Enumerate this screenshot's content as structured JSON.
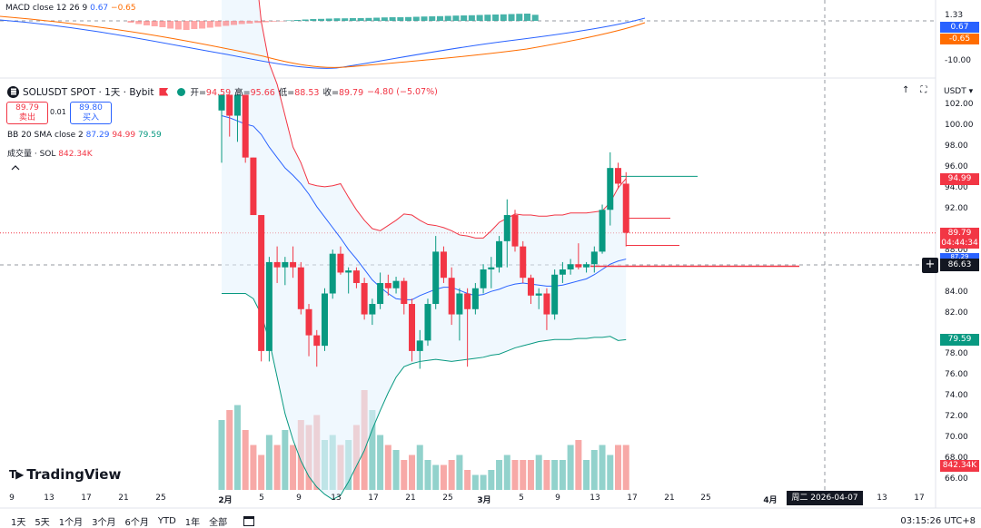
{
  "macd": {
    "label": "MACD close 12 26 9",
    "macd_val": "0.67",
    "signal_val": "−0.65",
    "scale": [
      "1.33",
      "0.67",
      "-0.65",
      "-10.00"
    ]
  },
  "symbol": {
    "title": "SOLUSDT SPOT · 1天 · Bybit",
    "open_label": "开=",
    "open": "94.59",
    "high_label": "高=",
    "high": "95.66",
    "low_label": "低=",
    "low": "88.53",
    "close_label": "收=",
    "close": "89.79",
    "change": "−4.80 (−5.07%)"
  },
  "trade": {
    "sell_price": "89.79",
    "sell_label": "卖出",
    "spread": "0.01",
    "buy_price": "89.80",
    "buy_label": "买入"
  },
  "bb": {
    "label": "BB 20 SMA close 2",
    "basis": "87.29",
    "upper": "94.99",
    "lower": "79.59"
  },
  "volume": {
    "label": "成交量 · SOL",
    "value": "842.34K"
  },
  "currency": "USDT",
  "price_axis": [
    "102.00",
    "100.00",
    "98.00",
    "96.00",
    "94.00",
    "92.00",
    "88.00",
    "84.00",
    "82.00",
    "78.00",
    "76.00",
    "74.00",
    "72.00",
    "70.00",
    "68.00",
    "66.00"
  ],
  "price_badges": {
    "upper": "94.99",
    "last": "89.79",
    "countdown": "04:44:34",
    "basis": "87.29",
    "crosshair": "86.63",
    "lower": "79.59",
    "volume": "842.34K"
  },
  "x_axis": [
    "9",
    "13",
    "17",
    "21",
    "25",
    "2月",
    "5",
    "9",
    "13",
    "17",
    "21",
    "25",
    "3月",
    "5",
    "9",
    "13",
    "17",
    "21",
    "25",
    "4月",
    "13",
    "17"
  ],
  "crosshair_date": "周二 2026-04-07",
  "branding": "TradingView",
  "timeframes": [
    "1天",
    "5天",
    "1个月",
    "3个月",
    "6个月",
    "YTD",
    "1年",
    "全部"
  ],
  "clock": "03:15:26 UTC+8",
  "colors": {
    "up": "#089981",
    "down": "#f23645",
    "macd_line": "#2962ff",
    "signal_line": "#ff6d00",
    "bb_fill": "#e3f2fd"
  },
  "chart_data": {
    "type": "candlestick",
    "y_range": [
      65,
      103
    ],
    "candles": [
      {
        "o": 101.5,
        "h": 103.0,
        "l": 96.5,
        "c": 103.0
      },
      {
        "o": 103.0,
        "h": 103.0,
        "l": 99.0,
        "c": 101.0
      },
      {
        "o": 101.0,
        "h": 103.0,
        "l": 98.5,
        "c": 103.0
      },
      {
        "o": 103.0,
        "h": 103.0,
        "l": 96.5,
        "c": 97.0
      },
      {
        "o": 97.0,
        "h": 97.0,
        "l": 91.5,
        "c": 91.5
      },
      {
        "o": 91.5,
        "h": 91.5,
        "l": 77.5,
        "c": 78.5
      },
      {
        "o": 78.5,
        "h": 87.5,
        "l": 77.5,
        "c": 87.0
      },
      {
        "o": 87.0,
        "h": 88.5,
        "l": 85.0,
        "c": 86.5
      },
      {
        "o": 86.5,
        "h": 87.5,
        "l": 84.8,
        "c": 87.0
      },
      {
        "o": 87.0,
        "h": 88.5,
        "l": 85.5,
        "c": 86.5
      },
      {
        "o": 86.5,
        "h": 87.0,
        "l": 82.0,
        "c": 82.5
      },
      {
        "o": 82.5,
        "h": 83.0,
        "l": 78.0,
        "c": 80.0
      },
      {
        "o": 80.0,
        "h": 80.5,
        "l": 77.0,
        "c": 79.0
      },
      {
        "o": 79.0,
        "h": 84.5,
        "l": 78.5,
        "c": 84.0
      },
      {
        "o": 84.0,
        "h": 88.2,
        "l": 83.5,
        "c": 87.8
      },
      {
        "o": 87.8,
        "h": 88.5,
        "l": 85.8,
        "c": 86.0
      },
      {
        "o": 86.0,
        "h": 86.5,
        "l": 84.0,
        "c": 86.2
      },
      {
        "o": 86.2,
        "h": 86.5,
        "l": 84.5,
        "c": 85.0
      },
      {
        "o": 85.0,
        "h": 85.5,
        "l": 81.5,
        "c": 82.0
      },
      {
        "o": 82.0,
        "h": 83.5,
        "l": 81.0,
        "c": 83.0
      },
      {
        "o": 83.0,
        "h": 86.0,
        "l": 82.5,
        "c": 85.0
      },
      {
        "o": 85.0,
        "h": 85.8,
        "l": 83.8,
        "c": 84.5
      },
      {
        "o": 84.5,
        "h": 85.6,
        "l": 84.0,
        "c": 85.2
      },
      {
        "o": 85.2,
        "h": 85.5,
        "l": 82.0,
        "c": 83.0
      },
      {
        "o": 83.0,
        "h": 83.5,
        "l": 77.5,
        "c": 78.5
      },
      {
        "o": 78.5,
        "h": 80.5,
        "l": 76.8,
        "c": 79.5
      },
      {
        "o": 79.5,
        "h": 83.5,
        "l": 79.0,
        "c": 83.0
      },
      {
        "o": 83.0,
        "h": 89.5,
        "l": 82.5,
        "c": 88.0
      },
      {
        "o": 88.0,
        "h": 88.5,
        "l": 85.0,
        "c": 85.5
      },
      {
        "o": 85.5,
        "h": 86.5,
        "l": 81.0,
        "c": 82.0
      },
      {
        "o": 82.0,
        "h": 84.5,
        "l": 79.5,
        "c": 84.0
      },
      {
        "o": 84.0,
        "h": 84.5,
        "l": 77.0,
        "c": 82.5
      },
      {
        "o": 82.5,
        "h": 85.0,
        "l": 82.0,
        "c": 84.5
      },
      {
        "o": 84.5,
        "h": 86.8,
        "l": 84.0,
        "c": 86.3
      },
      {
        "o": 86.3,
        "h": 87.5,
        "l": 84.5,
        "c": 86.5
      },
      {
        "o": 86.5,
        "h": 89.5,
        "l": 86.0,
        "c": 89.0
      },
      {
        "o": 89.0,
        "h": 93.0,
        "l": 86.5,
        "c": 91.5
      },
      {
        "o": 91.5,
        "h": 92.0,
        "l": 88.0,
        "c": 88.5
      },
      {
        "o": 88.5,
        "h": 89.0,
        "l": 85.0,
        "c": 85.5
      },
      {
        "o": 85.5,
        "h": 85.8,
        "l": 83.0,
        "c": 83.8
      },
      {
        "o": 83.8,
        "h": 84.5,
        "l": 82.5,
        "c": 84.0
      },
      {
        "o": 84.0,
        "h": 84.5,
        "l": 80.5,
        "c": 82.0
      },
      {
        "o": 82.0,
        "h": 86.3,
        "l": 81.5,
        "c": 85.8
      },
      {
        "o": 85.8,
        "h": 87.0,
        "l": 85.0,
        "c": 86.3
      },
      {
        "o": 86.3,
        "h": 87.3,
        "l": 85.8,
        "c": 86.8
      },
      {
        "o": 86.8,
        "h": 88.8,
        "l": 86.3,
        "c": 86.5
      },
      {
        "o": 86.5,
        "h": 87.0,
        "l": 86.0,
        "c": 86.8
      },
      {
        "o": 86.8,
        "h": 88.5,
        "l": 86.0,
        "c": 88.0
      },
      {
        "o": 88.0,
        "h": 92.5,
        "l": 87.8,
        "c": 92.0
      },
      {
        "o": 92.0,
        "h": 97.5,
        "l": 90.5,
        "c": 96.0
      },
      {
        "o": 96.0,
        "h": 96.5,
        "l": 94.0,
        "c": 94.5
      },
      {
        "o": 94.5,
        "h": 95.6,
        "l": 88.5,
        "c": 89.8
      }
    ],
    "bb_upper": [
      124,
      123,
      122,
      120,
      117,
      110,
      106,
      104,
      101,
      98,
      96.5,
      94.5,
      94.3,
      94.2,
      94.3,
      94.5,
      93.2,
      92.0,
      91.0,
      90.2,
      90.0,
      90.5,
      91.0,
      91.6,
      91.5,
      91.0,
      90.6,
      90.5,
      90.3,
      90.0,
      89.6,
      89.5,
      89.3,
      89.3,
      90.0,
      90.8,
      91.2,
      91.6,
      91.5,
      91.5,
      91.4,
      91.4,
      91.5,
      91.5,
      91.7,
      91.7,
      91.7,
      91.8,
      91.9,
      92.7,
      94.1,
      94.99
    ],
    "bb_basis": [
      101,
      100.8,
      100.5,
      100.2,
      100,
      99.2,
      98.0,
      97.0,
      96.0,
      95.3,
      94.5,
      93.5,
      92.3,
      91.3,
      90.3,
      89.3,
      88.2,
      87.3,
      86.3,
      85.3,
      84.6,
      84.0,
      83.5,
      83.4,
      83.4,
      83.8,
      84.1,
      84.4,
      84.6,
      84.6,
      84.3,
      84.0,
      83.8,
      83.9,
      84.2,
      84.4,
      84.7,
      84.9,
      85.0,
      84.9,
      84.8,
      84.7,
      84.7,
      84.8,
      85.0,
      85.2,
      85.4,
      85.8,
      86.3,
      86.8,
      87.1,
      87.29
    ],
    "bb_lower": [
      84,
      84,
      84,
      84,
      83.5,
      82,
      79.5,
      76.0,
      72.5,
      70.0,
      68.0,
      66.5,
      65.5,
      64.8,
      64.3,
      64.7,
      66.0,
      67.5,
      69.0,
      71.0,
      72.8,
      74.5,
      76.0,
      77.0,
      77.3,
      77.5,
      77.6,
      77.7,
      77.6,
      77.5,
      77.6,
      77.7,
      77.8,
      77.9,
      78.1,
      78.2,
      78.5,
      78.8,
      79.0,
      79.2,
      79.4,
      79.5,
      79.6,
      79.6,
      79.6,
      79.7,
      79.7,
      79.8,
      79.8,
      79.9,
      79.5,
      79.59
    ],
    "volume": [
      0.7,
      0.8,
      0.85,
      0.6,
      0.45,
      0.35,
      0.55,
      0.45,
      0.6,
      0.45,
      0.7,
      0.65,
      0.75,
      0.5,
      0.55,
      0.45,
      0.5,
      0.65,
      1.0,
      0.8,
      0.55,
      0.45,
      0.4,
      0.3,
      0.35,
      0.45,
      0.3,
      0.25,
      0.25,
      0.3,
      0.35,
      0.2,
      0.15,
      0.15,
      0.2,
      0.3,
      0.35,
      0.3,
      0.3,
      0.3,
      0.35,
      0.3,
      0.3,
      0.3,
      0.45,
      0.5,
      0.3,
      0.4,
      0.45,
      0.35,
      0.45,
      0.45
    ],
    "macd_hist": [
      -0.2,
      -0.35,
      -0.5,
      -0.6,
      -0.7,
      -0.85,
      -0.95,
      -1.0,
      -0.9,
      -0.85,
      -0.75,
      -0.65,
      -0.55,
      -0.45,
      -0.35,
      -0.3,
      -0.22,
      -0.15,
      -0.08,
      -0.05,
      0.05,
      0.1,
      0.15,
      0.2,
      0.22,
      0.25,
      0.28,
      0.28,
      0.3,
      0.3,
      0.32,
      0.35,
      0.38,
      0.4,
      0.4,
      0.42,
      0.45,
      0.48,
      0.5,
      0.52,
      0.55,
      0.58,
      0.6,
      0.62,
      0.65,
      0.68,
      0.7,
      0.72,
      0.75,
      0.78,
      0.8,
      0.67
    ]
  }
}
